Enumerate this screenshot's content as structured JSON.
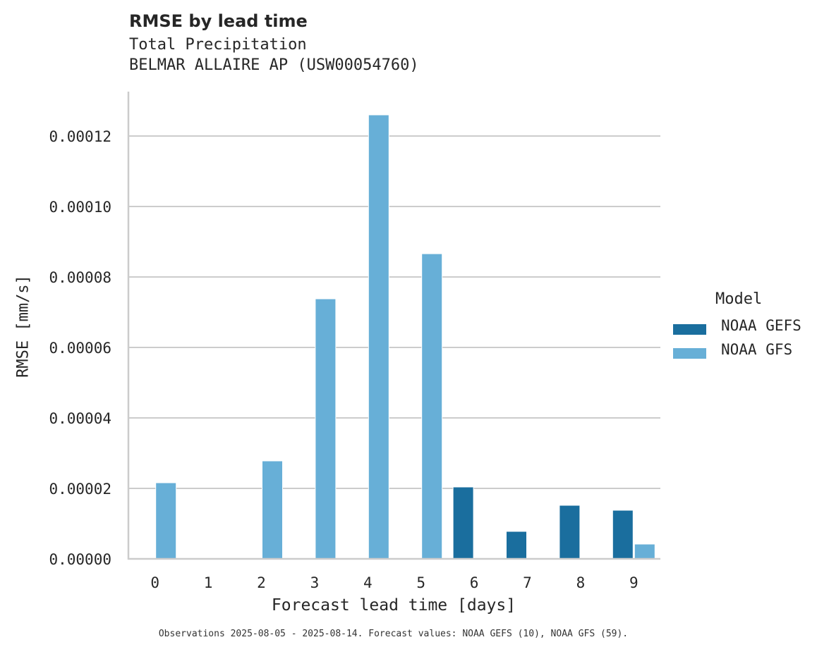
{
  "header": {
    "title": "RMSE by lead time",
    "subtitle_line1": "Total Precipitation",
    "subtitle_line2": "BELMAR ALLAIRE AP (USW00054760)"
  },
  "axes": {
    "xlabel": "Forecast lead time [days]",
    "ylabel": "RMSE [mm/s]",
    "xticks": [
      "0",
      "1",
      "2",
      "3",
      "4",
      "5",
      "6",
      "7",
      "8",
      "9"
    ],
    "yticks": [
      "0.00000",
      "0.00002",
      "0.00004",
      "0.00006",
      "0.00008",
      "0.00010",
      "0.00012"
    ]
  },
  "legend": {
    "title": "Model",
    "items": [
      {
        "label": "NOAA GEFS",
        "color": "#1a6e9e"
      },
      {
        "label": "NOAA GFS",
        "color": "#67afd7"
      }
    ]
  },
  "footnote": "Observations 2025-08-05 - 2025-08-14. Forecast values: NOAA GEFS (10), NOAA GFS (59).",
  "chart_data": {
    "type": "bar",
    "title": "RMSE by lead time",
    "subtitle": "Total Precipitation — BELMAR ALLAIRE AP (USW00054760)",
    "xlabel": "Forecast lead time [days]",
    "ylabel": "RMSE [mm/s]",
    "categories": [
      0,
      1,
      2,
      3,
      4,
      5,
      6,
      7,
      8,
      9
    ],
    "series": [
      {
        "name": "NOAA GEFS",
        "color": "#1a6e9e",
        "values": [
          null,
          null,
          null,
          null,
          null,
          null,
          2.04e-05,
          7.8e-06,
          1.52e-05,
          1.38e-05
        ]
      },
      {
        "name": "NOAA GFS",
        "color": "#67afd7",
        "values": [
          2.16e-05,
          null,
          2.78e-05,
          7.38e-05,
          0.000126,
          8.66e-05,
          null,
          null,
          null,
          4.2e-06
        ]
      }
    ],
    "ylim": [
      0,
      0.000132
    ],
    "yticks": [
      0,
      2e-05,
      4e-05,
      6e-05,
      8e-05,
      0.0001,
      0.00012
    ],
    "grid": "horizontal",
    "legend_position": "right",
    "legend_title": "Model"
  }
}
